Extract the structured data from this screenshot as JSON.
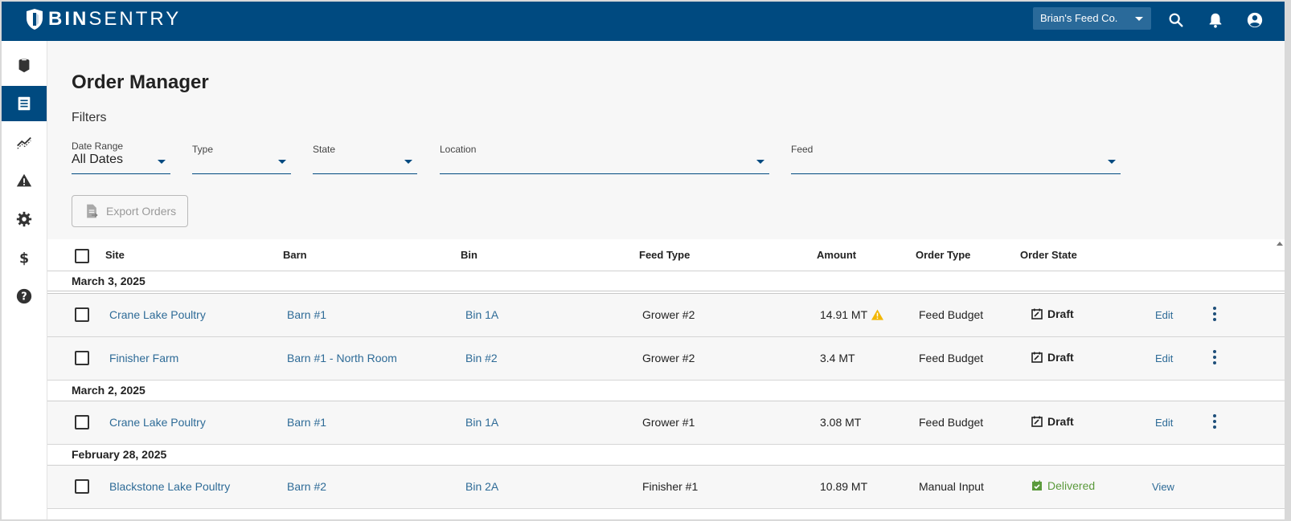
{
  "header": {
    "brand_bold": "BIN",
    "brand_light": "SENTRY",
    "org_selector": "Brian's Feed Co.",
    "icons": [
      "search-icon",
      "bell-icon",
      "account-icon"
    ]
  },
  "sidebar": {
    "items": [
      {
        "name": "bins",
        "icon": "bin-icon"
      },
      {
        "name": "orders",
        "icon": "receipt-icon",
        "active": true
      },
      {
        "name": "analytics",
        "icon": "trend-icon"
      },
      {
        "name": "alerts",
        "icon": "warning-icon"
      },
      {
        "name": "settings",
        "icon": "gear-icon"
      },
      {
        "name": "billing",
        "icon": "dollar-icon"
      },
      {
        "name": "help",
        "icon": "help-icon"
      }
    ]
  },
  "page": {
    "title": "Order Manager",
    "filters_label": "Filters",
    "filters": [
      {
        "label": "Date Range",
        "value": "All Dates"
      },
      {
        "label": "Type",
        "value": ""
      },
      {
        "label": "State",
        "value": ""
      },
      {
        "label": "Location",
        "value": ""
      },
      {
        "label": "Feed",
        "value": ""
      }
    ],
    "export_button": "Export Orders"
  },
  "table": {
    "columns": [
      "Site",
      "Barn",
      "Bin",
      "Feed Type",
      "Amount",
      "Order Type",
      "Order State"
    ],
    "groups": [
      {
        "date": "March 3, 2025",
        "rows": [
          {
            "site": "Crane Lake Poultry",
            "barn": "Barn #1",
            "bin": "Bin 1A",
            "feed_type": "Grower #2",
            "amount": "14.91 MT",
            "warning": true,
            "order_type": "Feed Budget",
            "state": "Draft",
            "action": "Edit"
          },
          {
            "site": "Finisher Farm",
            "barn": "Barn #1 - North Room",
            "bin": "Bin #2",
            "feed_type": "Grower #2",
            "amount": "3.4 MT",
            "warning": false,
            "order_type": "Feed Budget",
            "state": "Draft",
            "action": "Edit"
          }
        ]
      },
      {
        "date": "March 2, 2025",
        "rows": [
          {
            "site": "Crane Lake Poultry",
            "barn": "Barn #1",
            "bin": "Bin 1A",
            "feed_type": "Grower #1",
            "amount": "3.08 MT",
            "warning": false,
            "order_type": "Feed Budget",
            "state": "Draft",
            "action": "Edit"
          }
        ]
      },
      {
        "date": "February 28, 2025",
        "rows": [
          {
            "site": "Blackstone Lake Poultry",
            "barn": "Barn #2",
            "bin": "Bin 2A",
            "feed_type": "Finisher #1",
            "amount": "10.89 MT",
            "warning": false,
            "order_type": "Manual Input",
            "state": "Delivered",
            "action": "View"
          }
        ]
      }
    ]
  },
  "colors": {
    "brand": "#004a80",
    "link": "#2e6b97",
    "delivered": "#5b9a3c",
    "warning": "#f2b705"
  }
}
